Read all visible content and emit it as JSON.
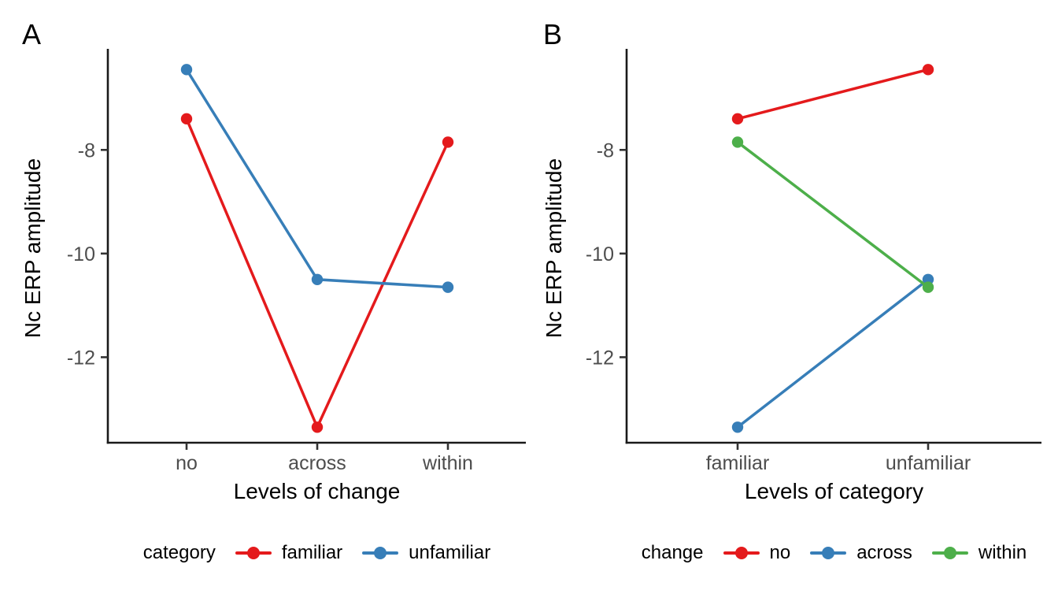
{
  "chart_data": [
    {
      "type": "line",
      "tag": "A",
      "xlabel": "Levels of change",
      "ylabel": "Nc ERP amplitude",
      "categories": [
        "no",
        "across",
        "within"
      ],
      "y_ticks": [
        -8,
        -10,
        -12
      ],
      "y_tick_labels": [
        "-8",
        "-10",
        "-12"
      ],
      "ylim": [
        -13.65,
        -6.05
      ],
      "grid": "off",
      "legend_position": "bottom",
      "legend_title": "category",
      "series": [
        {
          "name": "familiar",
          "color": "#E41A1C",
          "values": [
            -7.4,
            -13.35,
            -7.85
          ]
        },
        {
          "name": "unfamiliar",
          "color": "#377EB8",
          "values": [
            -6.45,
            -10.5,
            -10.65
          ]
        }
      ]
    },
    {
      "type": "line",
      "tag": "B",
      "xlabel": "Levels of category",
      "ylabel": "Nc ERP amplitude",
      "categories": [
        "familiar",
        "unfamiliar"
      ],
      "y_ticks": [
        -8,
        -10,
        -12
      ],
      "y_tick_labels": [
        "-8",
        "-10",
        "-12"
      ],
      "ylim": [
        -13.65,
        -6.05
      ],
      "grid": "off",
      "legend_position": "bottom",
      "legend_title": "change",
      "series": [
        {
          "name": "no",
          "color": "#E41A1C",
          "values": [
            -7.4,
            -6.45
          ]
        },
        {
          "name": "across",
          "color": "#377EB8",
          "values": [
            -13.35,
            -10.5
          ]
        },
        {
          "name": "within",
          "color": "#4DAF4A",
          "values": [
            -7.85,
            -10.65
          ]
        }
      ]
    }
  ],
  "style_colors": {
    "axis_line": "#1a1a1a",
    "tick_mark": "#333333",
    "tick_label": "#4d4d4d",
    "text": "#000000",
    "background": "#ffffff"
  }
}
